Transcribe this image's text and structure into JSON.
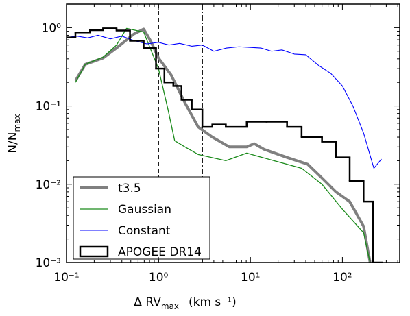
{
  "chart_data": {
    "type": "line",
    "xlabel": {
      "main": "Δ RV",
      "sub": "max",
      "unit": "(km s⁻¹)"
    },
    "ylabel": {
      "main": "N/N",
      "sub": "max"
    },
    "xscale": "log",
    "yscale": "log",
    "xlim": [
      0.1,
      420
    ],
    "ylim": [
      0.001,
      2
    ],
    "xticks": [
      {
        "value": 0.1,
        "label": "10⁻¹"
      },
      {
        "value": 1,
        "label": "10⁰"
      },
      {
        "value": 10,
        "label": "10¹"
      },
      {
        "value": 100,
        "label": "10²"
      }
    ],
    "yticks": [
      {
        "value": 0.001,
        "label": "10⁻³"
      },
      {
        "value": 0.01,
        "label": "10⁻²"
      },
      {
        "value": 0.1,
        "label": "10⁻¹"
      },
      {
        "value": 1,
        "label": "10⁰"
      }
    ],
    "vlines": [
      {
        "x": 1,
        "style": "dashed"
      },
      {
        "x": 3,
        "style": "dashdot"
      }
    ],
    "legend": "lower left",
    "series": [
      {
        "name": "t3.5",
        "color": "#808080",
        "width": 4,
        "style": "line",
        "x": [
          0.125,
          0.16,
          0.25,
          0.35,
          0.54,
          0.69,
          0.82,
          1.0,
          1.37,
          1.94,
          2.7,
          3.85,
          5.9,
          9.1,
          11,
          14,
          25,
          42,
          60,
          85,
          120,
          170,
          200
        ],
        "values": [
          0.21,
          0.34,
          0.41,
          0.55,
          0.83,
          0.96,
          0.68,
          0.41,
          0.25,
          0.11,
          0.054,
          0.04,
          0.03,
          0.03,
          0.033,
          0.028,
          0.022,
          0.018,
          0.012,
          0.008,
          0.006,
          0.0029,
          0.001
        ]
      },
      {
        "name": "Gaussian",
        "color": "#1a8a1a",
        "width": 1.3,
        "style": "line",
        "x": [
          0.125,
          0.16,
          0.25,
          0.35,
          0.45,
          0.69,
          1.0,
          1.27,
          1.5,
          1.94,
          2.7,
          5.4,
          9.1,
          18,
          36,
          60,
          100,
          170,
          200
        ],
        "values": [
          0.2,
          0.34,
          0.42,
          0.6,
          0.98,
          0.88,
          0.3,
          0.09,
          0.036,
          0.03,
          0.024,
          0.02,
          0.025,
          0.02,
          0.016,
          0.01,
          0.0048,
          0.0024,
          0.001
        ]
      },
      {
        "name": "Constant",
        "color": "#0000ff",
        "width": 1.1,
        "style": "line",
        "x": [
          0.1,
          0.13,
          0.17,
          0.22,
          0.3,
          0.4,
          0.55,
          0.75,
          1.0,
          1.3,
          1.7,
          2.3,
          3,
          4,
          5.5,
          7.5,
          10,
          13,
          17,
          22,
          30,
          40,
          55,
          75,
          100,
          130,
          170,
          220,
          266
        ],
        "values": [
          0.75,
          0.78,
          0.74,
          0.8,
          0.72,
          0.78,
          0.68,
          0.62,
          0.65,
          0.6,
          0.63,
          0.58,
          0.6,
          0.5,
          0.55,
          0.57,
          0.56,
          0.55,
          0.5,
          0.52,
          0.46,
          0.45,
          0.33,
          0.26,
          0.18,
          0.1,
          0.045,
          0.016,
          0.021
        ]
      },
      {
        "name": "APOGEE DR14",
        "color": "#000000",
        "width": 2.5,
        "style": "steps",
        "x": [
          0.1,
          0.125,
          0.18,
          0.25,
          0.35,
          0.49,
          0.69,
          0.94,
          1.16,
          1.45,
          1.78,
          2.3,
          3,
          3.85,
          5.4,
          9.1,
          15,
          25,
          36,
          60,
          85,
          120,
          170,
          215
        ],
        "values": [
          0.75,
          0.87,
          0.93,
          0.98,
          0.92,
          0.68,
          0.55,
          0.3,
          0.2,
          0.18,
          0.12,
          0.09,
          0.054,
          0.058,
          0.054,
          0.063,
          0.063,
          0.054,
          0.04,
          0.035,
          0.022,
          0.011,
          0.006,
          0.001
        ]
      }
    ]
  }
}
